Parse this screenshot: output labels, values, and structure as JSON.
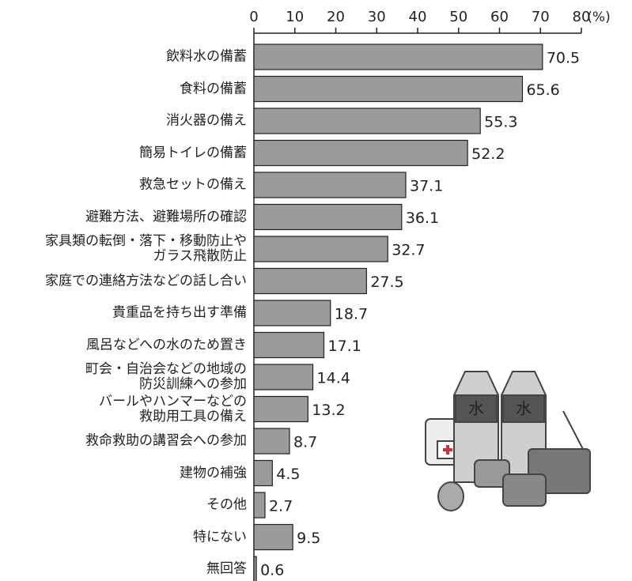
{
  "chart_data": {
    "type": "barh",
    "x_label": "(%)",
    "categories": [
      "飲料水の備蓄",
      "食料の備蓄",
      "消火器の備え",
      "簡易トイレの備蓄",
      "救急セットの備え",
      "避難方法、避難場所の確認",
      "家具類の転倒・落下・移動防止や\nガラス飛散防止",
      "家庭での連絡方法などの話し合い",
      "貴重品を持ち出す準備",
      "風呂などへの水のため置き",
      "町会・自治会などの地域の\n防災訓練への参加",
      "バールやハンマーなどの\n救助用工具の備え",
      "救命救助の講習会への参加",
      "建物の補強",
      "その他",
      "特にない",
      "無回答"
    ],
    "values": [
      70.5,
      65.6,
      55.3,
      52.2,
      37.1,
      36.1,
      32.7,
      27.5,
      18.7,
      17.1,
      14.4,
      13.2,
      8.7,
      4.5,
      2.7,
      9.5,
      0.6
    ],
    "color": "#9b9b9b",
    "xlim": [
      0,
      80
    ],
    "xticks": [
      0,
      10,
      20,
      30,
      40,
      50,
      60,
      70,
      80
    ]
  }
}
